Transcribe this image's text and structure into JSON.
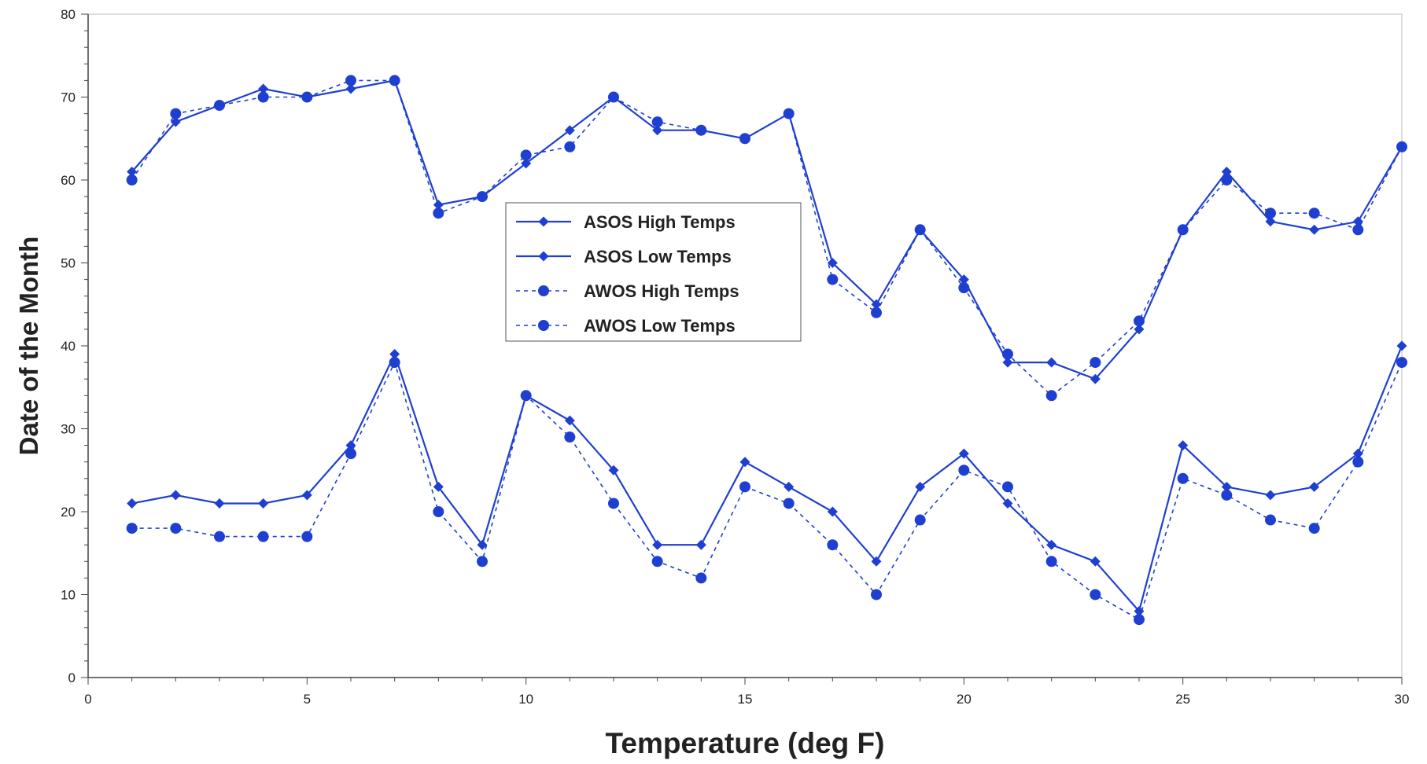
{
  "chart_data": {
    "type": "line",
    "title": "",
    "xlabel": "Temperature (deg F)",
    "ylabel": "Date of the Month",
    "xlim": [
      0,
      30
    ],
    "ylim": [
      0,
      80
    ],
    "xticks": [
      0,
      5,
      10,
      15,
      20,
      25,
      30
    ],
    "yticks": [
      0,
      10,
      20,
      30,
      40,
      50,
      60,
      70,
      80
    ],
    "xtick_labels": [
      "0",
      "5",
      "10",
      "15",
      "20",
      "25",
      "30"
    ],
    "ytick_labels": [
      "0",
      "10",
      "20",
      "30",
      "40",
      "50",
      "60",
      "70",
      "80"
    ],
    "grid": false,
    "legend_position": "center",
    "x": [
      1,
      2,
      3,
      4,
      5,
      6,
      7,
      8,
      9,
      10,
      11,
      12,
      13,
      14,
      15,
      16,
      17,
      18,
      19,
      20,
      21,
      22,
      23,
      24,
      25,
      26,
      27,
      28,
      29,
      30
    ],
    "series": [
      {
        "name": "ASOS High Temps",
        "style": "solid",
        "marker": "diamond",
        "color": "#1f3fd0",
        "values": [
          61,
          67,
          69,
          71,
          70,
          71,
          72,
          57,
          58,
          62,
          66,
          70,
          66,
          66,
          65,
          68,
          50,
          45,
          54,
          48,
          38,
          38,
          36,
          42,
          54,
          61,
          55,
          54,
          55,
          64
        ]
      },
      {
        "name": "ASOS Low Temps",
        "style": "solid",
        "marker": "diamond",
        "color": "#1f3fd0",
        "values": [
          21,
          22,
          21,
          21,
          22,
          28,
          39,
          23,
          16,
          34,
          31,
          25,
          16,
          16,
          26,
          23,
          20,
          14,
          23,
          27,
          21,
          16,
          14,
          8,
          28,
          23,
          22,
          23,
          27,
          40
        ]
      },
      {
        "name": "AWOS High Temps",
        "style": "dashed",
        "marker": "circle",
        "color": "#1f3fd0",
        "values": [
          60,
          68,
          69,
          70,
          70,
          72,
          72,
          56,
          58,
          63,
          64,
          70,
          67,
          66,
          65,
          68,
          48,
          44,
          54,
          47,
          39,
          34,
          38,
          43,
          54,
          60,
          56,
          56,
          54,
          64
        ]
      },
      {
        "name": "AWOS Low Temps",
        "style": "dashed",
        "marker": "circle",
        "color": "#1f3fd0",
        "values": [
          18,
          18,
          17,
          17,
          17,
          27,
          38,
          20,
          14,
          34,
          29,
          21,
          14,
          12,
          23,
          21,
          16,
          10,
          19,
          25,
          23,
          14,
          10,
          7,
          24,
          22,
          19,
          18,
          26,
          38
        ]
      }
    ]
  }
}
